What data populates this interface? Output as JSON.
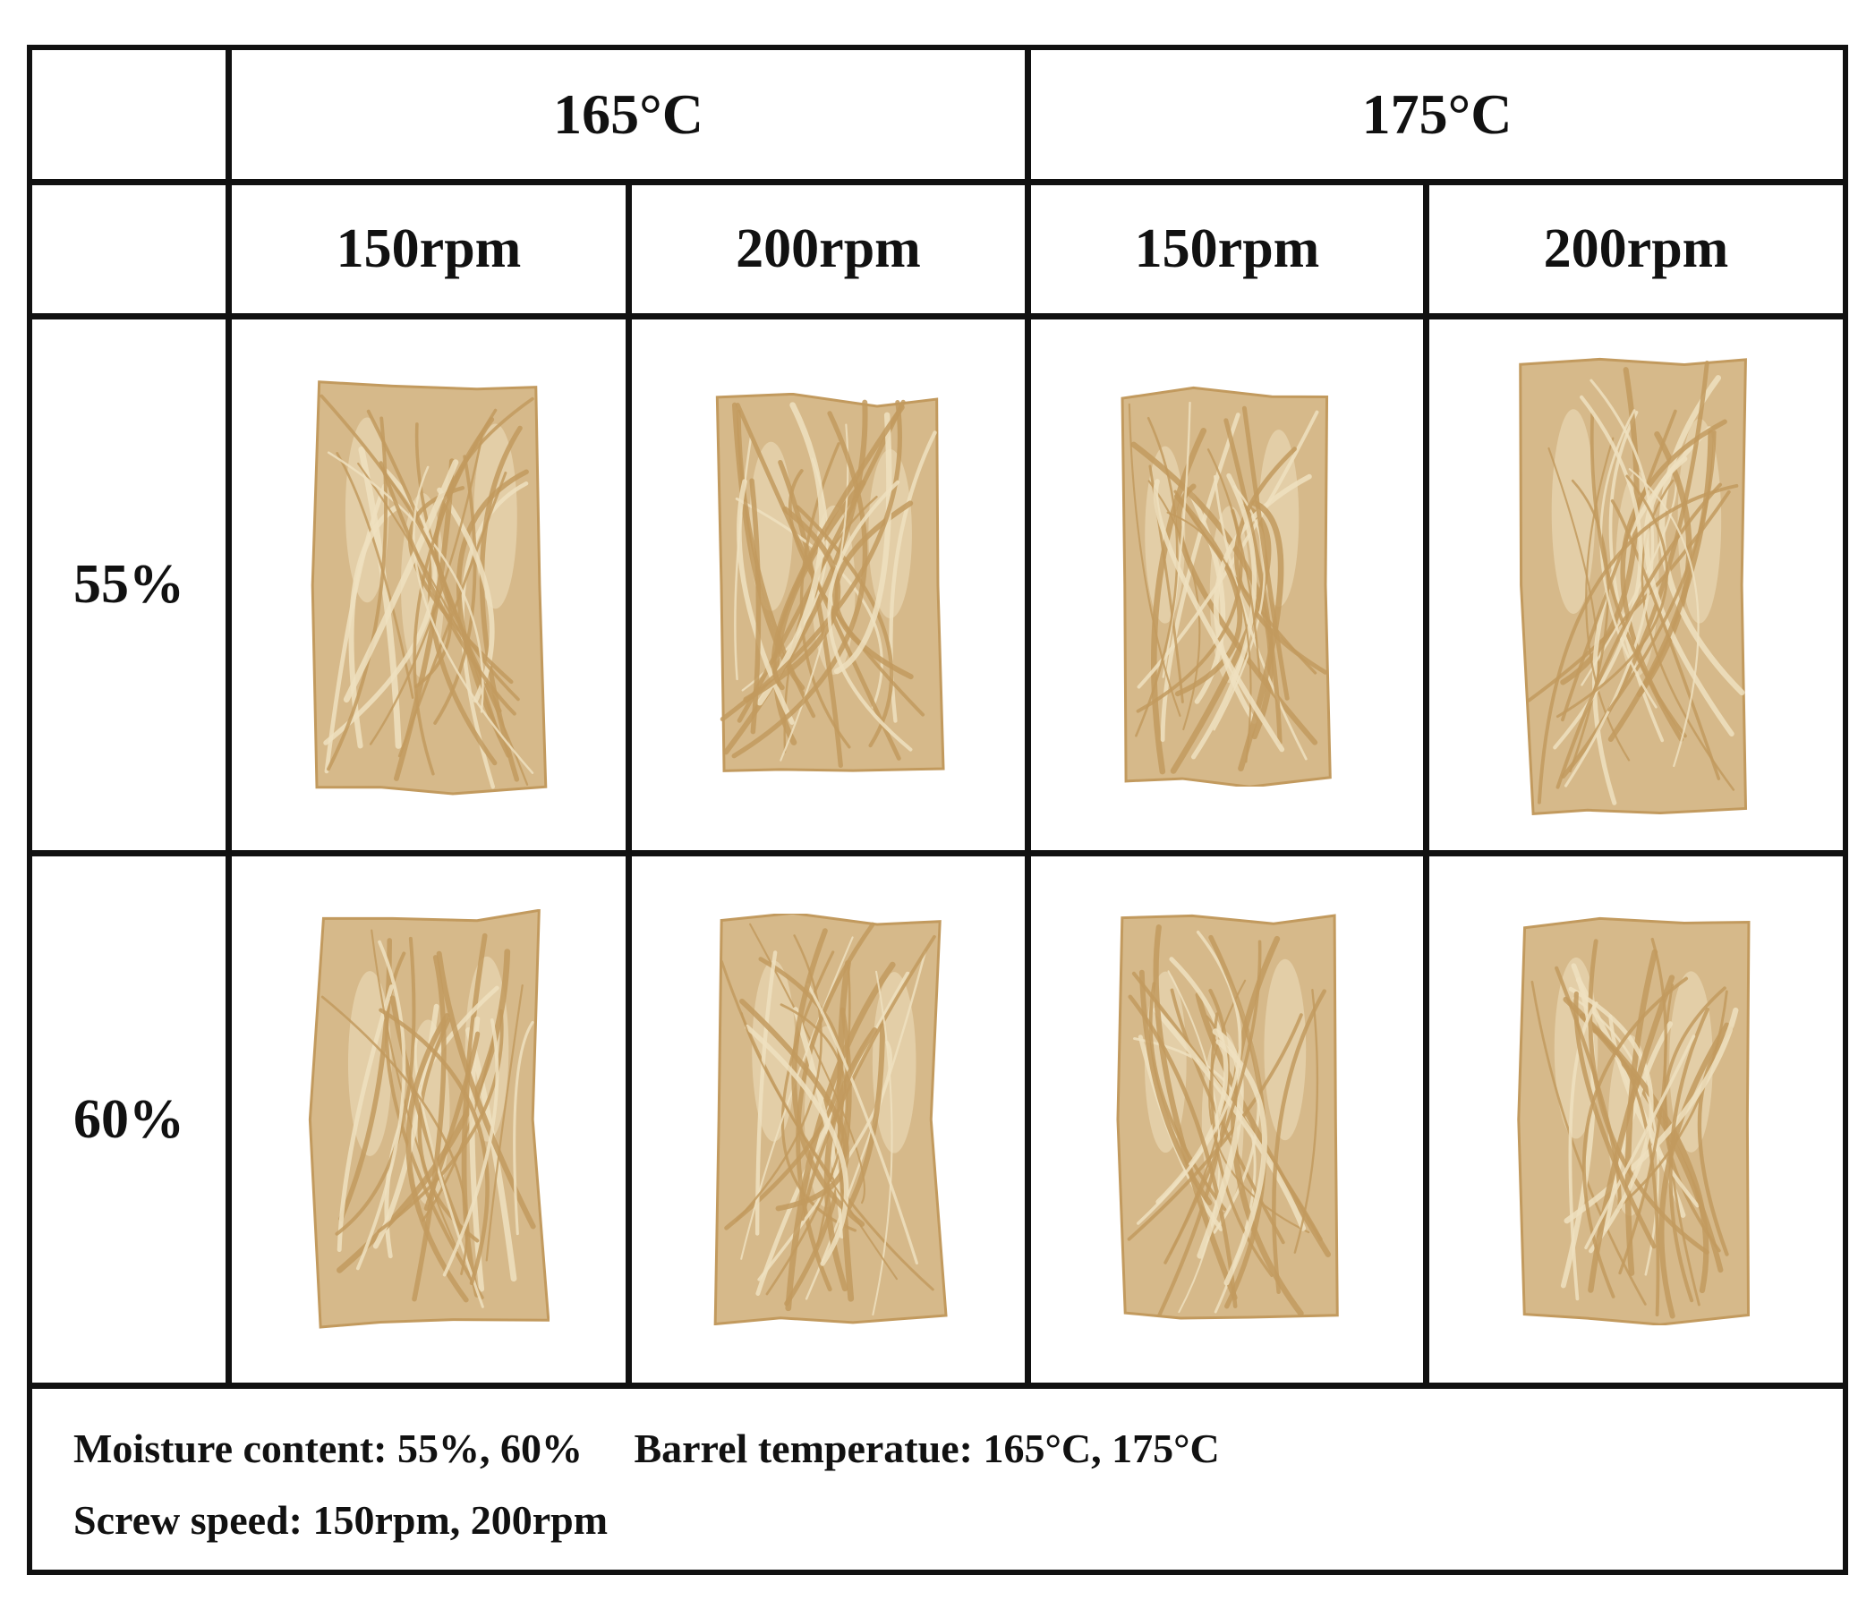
{
  "header": {
    "temperatures": [
      "165°C",
      "175°C"
    ],
    "speeds": [
      "150rpm",
      "200rpm",
      "150rpm",
      "200rpm"
    ]
  },
  "rows": [
    {
      "moisture": "55%",
      "samples": [
        {
          "temperature": "165°C",
          "speed": "150rpm",
          "image": "textured-protein-sample-icon"
        },
        {
          "temperature": "165°C",
          "speed": "200rpm",
          "image": "textured-protein-sample-icon"
        },
        {
          "temperature": "175°C",
          "speed": "150rpm",
          "image": "textured-protein-sample-icon"
        },
        {
          "temperature": "175°C",
          "speed": "200rpm",
          "image": "textured-protein-sample-icon"
        }
      ]
    },
    {
      "moisture": "60%",
      "samples": [
        {
          "temperature": "165°C",
          "speed": "150rpm",
          "image": "textured-protein-sample-icon"
        },
        {
          "temperature": "165°C",
          "speed": "200rpm",
          "image": "textured-protein-sample-icon"
        },
        {
          "temperature": "175°C",
          "speed": "150rpm",
          "image": "textured-protein-sample-icon"
        },
        {
          "temperature": "175°C",
          "speed": "200rpm",
          "image": "textured-protein-sample-icon"
        }
      ]
    }
  ],
  "footer": {
    "line1": "Moisture content: 55%, 60%     Barrel temperatue: 165°C, 175°C",
    "line2": "Screw speed: 150rpm, 200rpm"
  },
  "colors": {
    "border": "#111111",
    "sample_base": "#d6b98a",
    "sample_fiber": "#c29a5e",
    "sample_light": "#efe0c0"
  }
}
